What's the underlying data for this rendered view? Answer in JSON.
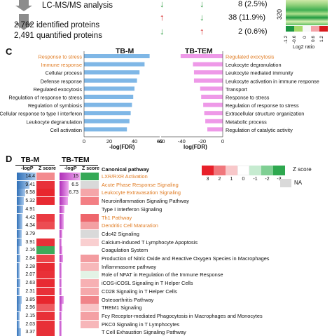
{
  "top": {
    "lcms_label": "LC-MS/MS analysis",
    "identified": "2,762 identified proteins",
    "quantified": "2,491 quantified proteins",
    "rows": [
      {
        "count": "8 (2.5%)",
        "a": "down",
        "b": "down"
      },
      {
        "count": "38 (11.9%)",
        "a": "up",
        "b": "down"
      },
      {
        "count": "2 (0.6%)",
        "a": "down",
        "b": "up"
      }
    ],
    "heat_axis_value": "320",
    "legend_ticks": [
      "-1.2",
      "-0.6",
      "0",
      "0.6",
      "1.2"
    ],
    "legend_label": "Log2 ratio",
    "legend_colors": [
      "#1a9641",
      "#a6d96a",
      "#f7f7f7",
      "#f4a3a8",
      "#d7191c"
    ]
  },
  "panel_c": {
    "letter": "C",
    "left": {
      "title": "TB-M",
      "color": "#7fb7e6",
      "xlabel": "-log(FDR)",
      "ticks": [
        "0",
        "20",
        "40",
        "60"
      ]
    },
    "right": {
      "title": "TB-TEM",
      "color": "#ee99e8",
      "xlabel": "log(FDR)",
      "ticks": [
        "-60",
        "-40",
        "-20",
        "0"
      ]
    }
  },
  "chart_data": [
    {
      "type": "bar",
      "title": "TB-M",
      "xlabel": "-log(FDR)",
      "xlim": [
        0,
        60
      ],
      "categories": [
        "Response to stress",
        "Immune response",
        "Cellular process",
        "Defense response",
        "Regulated exocytosis",
        "Regulation of response to stress",
        "Regulation of symbiosis",
        "Cellular response to type I interferon",
        "Leukocyte degranulation",
        "Cell activation"
      ],
      "highlighted": [
        true,
        true,
        false,
        false,
        false,
        false,
        false,
        false,
        false,
        false
      ],
      "values": [
        52,
        48,
        44,
        42,
        40,
        39,
        38,
        37,
        36,
        34
      ]
    },
    {
      "type": "bar",
      "title": "TB-TEM",
      "xlabel": "log(FDR)",
      "xlim": [
        -60,
        0
      ],
      "categories": [
        "Regulated exocytosis",
        "Leukocyte degranulation",
        "Leukocyte mediated immunity",
        "Leukocyte activation in immune response",
        "Transport",
        "Response to stress",
        "Regulation of response to stress",
        "Extracellular structure organization",
        "Metabolic process",
        "Regulation of catalytic activity"
      ],
      "highlighted": [
        true,
        false,
        false,
        false,
        false,
        false,
        false,
        false,
        false,
        false
      ],
      "values": [
        -41,
        -29,
        -28,
        -28,
        -22,
        -21,
        -19,
        -18,
        -17,
        -15
      ]
    }
  ],
  "panel_d": {
    "letter": "D",
    "group_tbm": "TB-M",
    "group_tbtem": "TB-TEM",
    "col_logp": "-logP",
    "col_z": "Z score",
    "col_pathway": "Canonical pathway",
    "legend_values": [
      "3",
      "2",
      "1",
      "0",
      "-1",
      "-2",
      "-3"
    ],
    "legend_colors": [
      "#e8202a",
      "#f0777c",
      "#f8c8ca",
      "#ffffff",
      "#c6ebd0",
      "#7fcf93",
      "#2ea84f"
    ],
    "legend_zlabel": "Z score",
    "legend_na": "NA",
    "rows": [
      {
        "m_logp": "14.4",
        "m_bar": 1.0,
        "m_z": "#f38a8e",
        "t_logp": "15",
        "t_bar": 1.0,
        "t_z": "#35a956",
        "pathway": "LXR/RXR Activation",
        "hl": true
      },
      {
        "m_logp": "9.41",
        "m_bar": 0.66,
        "m_z": "#e8303a",
        "t_logp": "6.5",
        "t_bar": 0.45,
        "t_z": "#d9d9d9",
        "pathway": "Acute Phase Response Signaling",
        "hl": true
      },
      {
        "m_logp": "6.58",
        "m_bar": 0.46,
        "m_z": "#e8262e",
        "t_logp": "6.73",
        "t_bar": 0.45,
        "t_z": "#f5a6a9",
        "pathway": "Leukocyte Extravasation Signaling",
        "hl": true
      },
      {
        "m_logp": "5.32",
        "m_bar": 0.37,
        "m_z": "#e82a32",
        "t_logp": "",
        "t_bar": 0.4,
        "t_z": "#f37f84",
        "pathway": "Neuroinflammation Signaling Pathway",
        "hl": false
      },
      {
        "m_logp": "4.91",
        "m_bar": 0.34,
        "m_z": "#ffffff",
        "t_logp": "",
        "t_bar": 0.25,
        "t_z": "#ffffff",
        "pathway": "Type I Interferon Signaling",
        "hl": false
      },
      {
        "m_logp": "4.42",
        "m_bar": 0.31,
        "m_z": "#ea3a42",
        "t_logp": "",
        "t_bar": 0.22,
        "t_z": "#ee666c",
        "pathway": "Th1 Pathway",
        "hl": true
      },
      {
        "m_logp": "4.34",
        "m_bar": 0.3,
        "m_z": "#ec4c53",
        "t_logp": "",
        "t_bar": 0.2,
        "t_z": "#f3a0a3",
        "pathway": "Dendritic Cell Maturation",
        "hl": true
      },
      {
        "m_logp": "3.79",
        "m_bar": 0.26,
        "m_z": "#ffffff",
        "t_logp": "",
        "t_bar": 0.15,
        "t_z": "#d9d9d9",
        "pathway": "Cdc42 Signaling",
        "hl": false
      },
      {
        "m_logp": "3.91",
        "m_bar": 0.27,
        "m_z": "#e73038",
        "t_logp": "",
        "t_bar": 0.12,
        "t_z": "#f9cfd0",
        "pathway": "Calcium-induced T Lymphocyte Apoptosis",
        "hl": false
      },
      {
        "m_logp": "2.16",
        "m_bar": 0.15,
        "m_z": "#3daa5a",
        "t_logp": "",
        "t_bar": 0.15,
        "t_z": "#ffffff",
        "pathway": "Coagulation System",
        "hl": false
      },
      {
        "m_logp": "2.84",
        "m_bar": 0.2,
        "m_z": "#ec444b",
        "t_logp": "",
        "t_bar": 0.18,
        "t_z": "#f39ca0",
        "pathway": "Production of Nitric Oxide and Reactive Oxygen Species in Macrophages",
        "hl": false
      },
      {
        "m_logp": "2.28",
        "m_bar": 0.16,
        "m_z": "#e82a32",
        "t_logp": "",
        "t_bar": 0.12,
        "t_z": "#f7b8ba",
        "pathway": "Inflammasome pathway",
        "hl": false
      },
      {
        "m_logp": "2.07",
        "m_bar": 0.14,
        "m_z": "#e93038",
        "t_logp": "",
        "t_bar": 0.1,
        "t_z": "#e3f3e6",
        "pathway": "Role of NFAT in Regulation of the Immune Response",
        "hl": false
      },
      {
        "m_logp": "2.63",
        "m_bar": 0.18,
        "m_z": "#e82a32",
        "t_logp": "",
        "t_bar": 0.12,
        "t_z": "#f7b0b3",
        "pathway": "iCOS-iCOSL Signaling in T Helper Cells",
        "hl": false
      },
      {
        "m_logp": "2.31",
        "m_bar": 0.16,
        "m_z": "#e83038",
        "t_logp": "",
        "t_bar": 0.1,
        "t_z": "#f5a8ab",
        "pathway": "CD28 Signaling in T Helper Cells",
        "hl": false
      },
      {
        "m_logp": "3.85",
        "m_bar": 0.27,
        "m_z": "#e8262e",
        "t_logp": "",
        "t_bar": 0.22,
        "t_z": "#f08489",
        "pathway": "Osteoarthritis Pathway",
        "hl": false
      },
      {
        "m_logp": "2.96",
        "m_bar": 0.21,
        "m_z": "#ee5a60",
        "t_logp": "",
        "t_bar": 0.14,
        "t_z": "#f8c4c6",
        "pathway": "TREM1 Signaling",
        "hl": false
      },
      {
        "m_logp": "2.15",
        "m_bar": 0.15,
        "m_z": "#e83038",
        "t_logp": "",
        "t_bar": 0.12,
        "t_z": "#f4a0a4",
        "pathway": "Fcy Receptor-mediated Phagocytosis in Macrophages and Monocytes",
        "hl": false
      },
      {
        "m_logp": "2.03",
        "m_bar": 0.14,
        "m_z": "#e83038",
        "t_logp": "",
        "t_bar": 0.1,
        "t_z": "#f7b6b9",
        "pathway": "PKC0 Signaling in T Lymphocytes",
        "hl": false
      },
      {
        "m_logp": "3.37",
        "m_bar": 0.23,
        "m_z": "#e73038",
        "t_logp": "",
        "t_bar": 0.1,
        "t_z": "#ffffff",
        "pathway": "T Cell Exhaustion Signaling Pathway",
        "hl": false
      }
    ]
  }
}
